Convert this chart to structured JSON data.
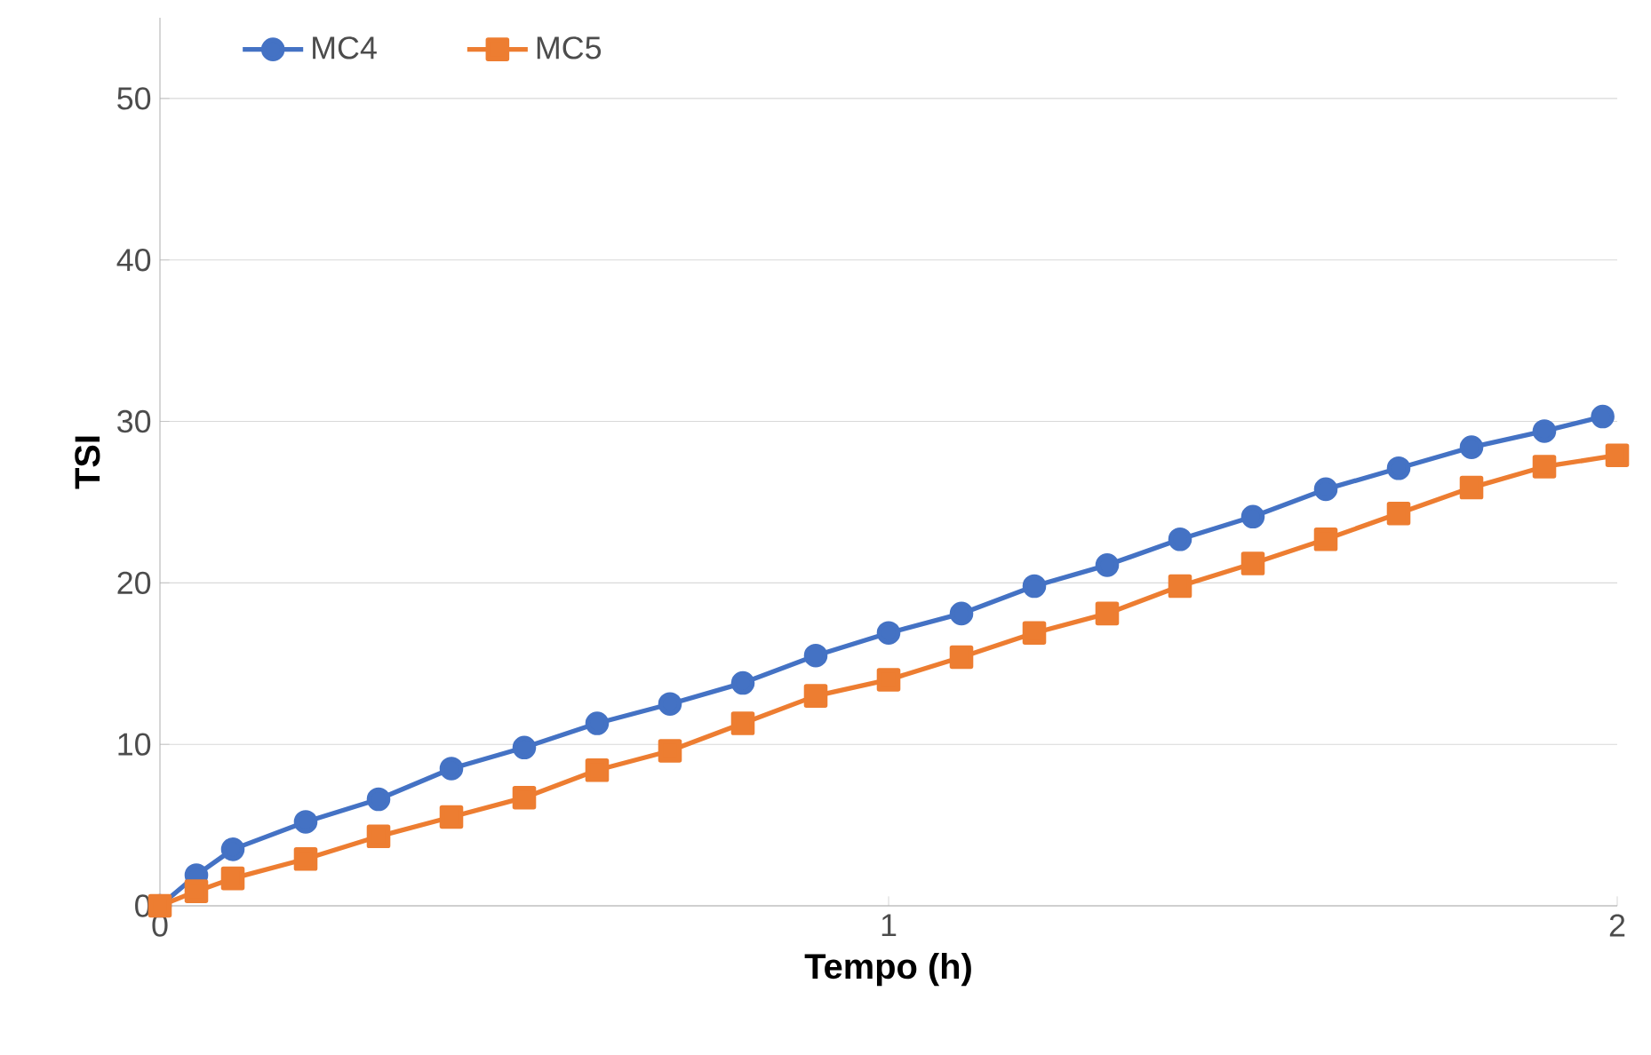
{
  "chart_data": {
    "type": "line",
    "xlabel": "Tempo (h)",
    "ylabel": "TSI",
    "x": [
      0,
      0.05,
      0.1,
      0.2,
      0.3,
      0.4,
      0.5,
      0.6,
      0.7,
      0.8,
      0.9,
      1.0,
      1.1,
      1.2,
      1.3,
      1.4,
      1.5,
      1.6,
      1.7,
      1.8,
      1.9,
      1.98
    ],
    "series": [
      {
        "name": "MC4",
        "color": "#4472c4",
        "marker": "circle",
        "values": [
          0,
          1.9,
          3.5,
          5.2,
          6.6,
          8.5,
          9.8,
          11.3,
          12.5,
          13.8,
          15.5,
          16.9,
          18.1,
          19.8,
          21.1,
          22.7,
          24.1,
          25.8,
          27.1,
          28.4,
          29.4,
          30.3
        ]
      },
      {
        "name": "MC5",
        "color": "#ed7d31",
        "marker": "square",
        "x": [
          0,
          0.05,
          0.1,
          0.2,
          0.3,
          0.4,
          0.5,
          0.6,
          0.7,
          0.8,
          0.9,
          1.0,
          1.1,
          1.2,
          1.3,
          1.4,
          1.5,
          1.6,
          1.7,
          1.8,
          1.9,
          2.0
        ],
        "values": [
          0,
          0.9,
          1.7,
          2.9,
          4.3,
          5.5,
          6.7,
          8.4,
          9.6,
          11.3,
          13.0,
          14.0,
          15.4,
          16.9,
          18.1,
          19.8,
          21.2,
          22.7,
          24.3,
          25.9,
          27.2,
          27.9
        ]
      }
    ],
    "xlim": [
      0,
      2
    ],
    "ylim": [
      0,
      55
    ],
    "xticks": [
      0,
      1,
      2
    ],
    "yticks": [
      0,
      10,
      20,
      30,
      40,
      50
    ],
    "grid": "y",
    "legend": "top left",
    "line_style": "solid"
  }
}
